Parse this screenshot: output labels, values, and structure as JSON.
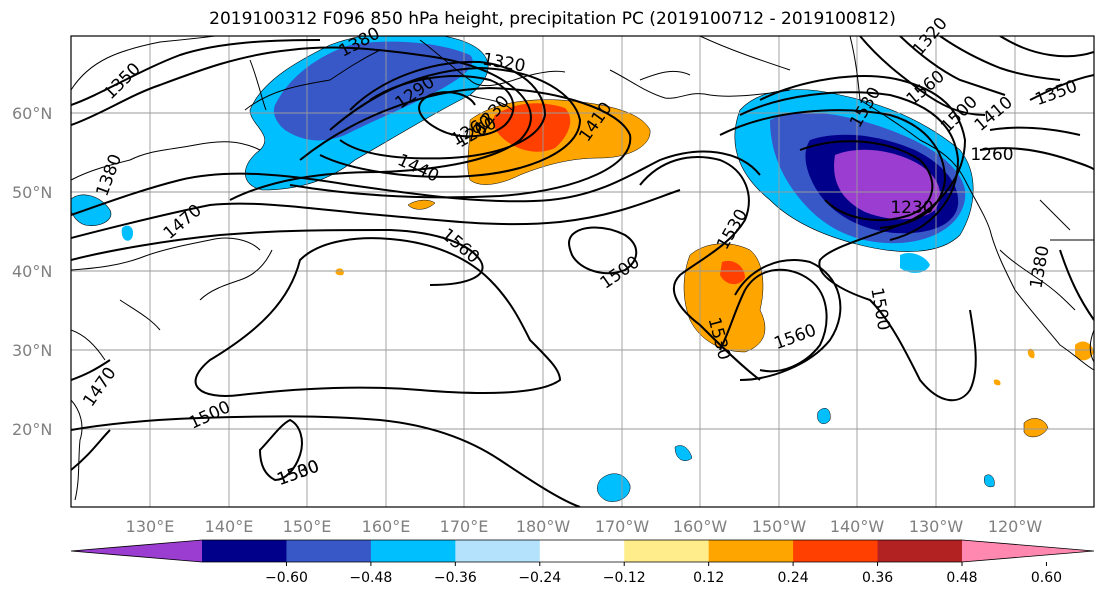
{
  "title": "2019100312 F096 850 hPa height, precipitation PC (2019100712 - 2019100812)",
  "latitude_labels": [
    "60°N",
    "50°N",
    "40°N",
    "30°N",
    "20°N"
  ],
  "longitude_labels": [
    "130°E",
    "140°E",
    "150°E",
    "160°E",
    "170°E",
    "180°W",
    "170°W",
    "160°W",
    "150°W",
    "140°W",
    "130°W",
    "120°W"
  ],
  "contour_labels": [
    "1380",
    "1350",
    "1290",
    "1320",
    "1260",
    "1230",
    "1260",
    "1410",
    "1440",
    "1470",
    "1380",
    "1560",
    "1530",
    "1500",
    "1560",
    "1530",
    "1500",
    "1410",
    "1350",
    "1320",
    "1290",
    "1260",
    "1230",
    "1380",
    "1500",
    "1560",
    "1530",
    "1470",
    "1500",
    "1500",
    "1530"
  ],
  "colorbar": {
    "colors": [
      "#9932cc",
      "#00008b",
      "#3a5bd0",
      "#00bfff",
      "#b0e0fa",
      "#ffffff",
      "#ffff00",
      "#ffa500",
      "#ff4500",
      "#b22222",
      "#ff88aa"
    ],
    "display_colors": [
      "#9a3dd0",
      "#00008b",
      "#3858c8",
      "#00bfff",
      "#b4e2fc",
      "#ffffff",
      "#ffec8b",
      "#ffa500",
      "#ff4000",
      "#b22222",
      "#ff88b0"
    ],
    "ticks": [
      "−0.60",
      "−0.48",
      "−0.36",
      "−0.24",
      "−0.12",
      "0.12",
      "0.24",
      "0.36",
      "0.48",
      "0.60"
    ]
  }
}
